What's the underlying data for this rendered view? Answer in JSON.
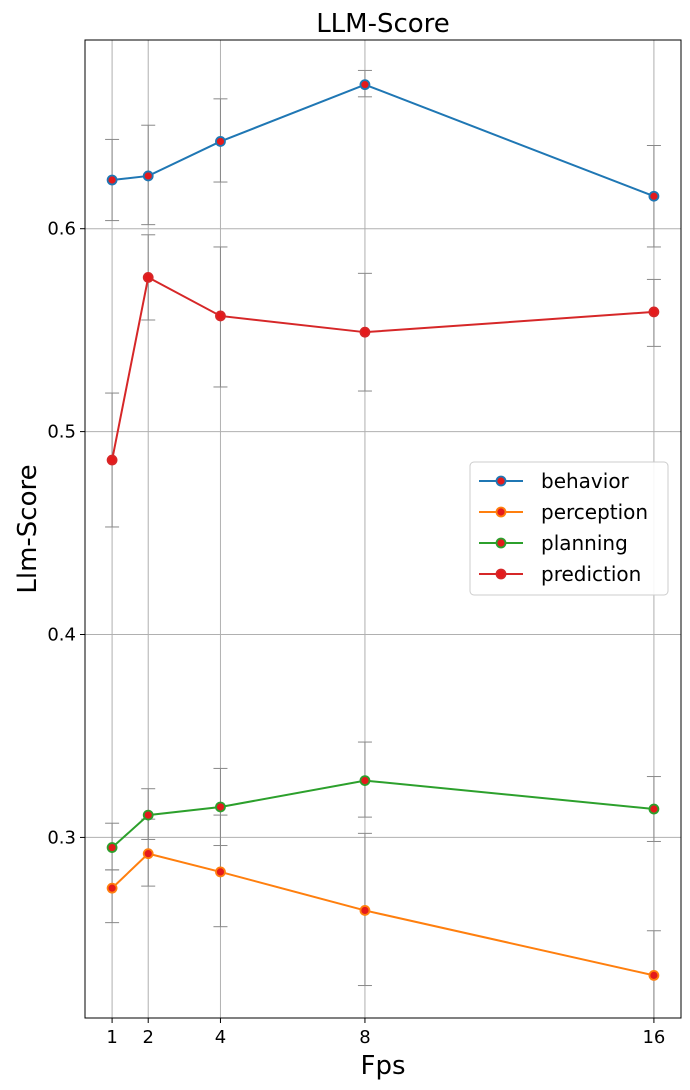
{
  "chart_data": {
    "type": "line",
    "title": "LLM-Score",
    "xlabel": "Fps",
    "ylabel": "Llm-Score",
    "x": [
      1,
      2,
      4,
      8,
      16
    ],
    "x_ticks": [
      "1",
      "2",
      "4",
      "8",
      "16"
    ],
    "y_ticks": [
      "0.3",
      "0.4",
      "0.5",
      "0.6"
    ],
    "xlim": [
      0.25,
      16.75
    ],
    "ylim": [
      0.211,
      0.693
    ],
    "grid": true,
    "legend_position": "center-right",
    "marker_face_color": "#e41a1c",
    "series": [
      {
        "name": "behavior",
        "color": "#1f77b4",
        "values": [
          0.624,
          0.626,
          0.643,
          0.671,
          0.616
        ],
        "error_low": [
          0.604,
          0.602,
          0.623,
          0.665,
          0.591
        ],
        "error_high": [
          0.644,
          0.651,
          0.664,
          0.678,
          0.641
        ]
      },
      {
        "name": "perception",
        "color": "#ff7f0e",
        "values": [
          0.275,
          0.292,
          0.283,
          0.264,
          0.232
        ],
        "error_low": [
          0.258,
          0.276,
          0.256,
          0.227,
          0.211
        ],
        "error_high": [
          0.284,
          0.309,
          0.311,
          0.302,
          0.254
        ]
      },
      {
        "name": "planning",
        "color": "#2ca02c",
        "values": [
          0.295,
          0.311,
          0.315,
          0.328,
          0.314
        ],
        "error_low": [
          0.284,
          0.299,
          0.296,
          0.31,
          0.298
        ],
        "error_high": [
          0.307,
          0.324,
          0.334,
          0.347,
          0.33
        ]
      },
      {
        "name": "prediction",
        "color": "#d62728",
        "values": [
          0.486,
          0.576,
          0.557,
          0.549,
          0.559
        ],
        "error_low": [
          0.453,
          0.555,
          0.522,
          0.52,
          0.542
        ],
        "error_high": [
          0.519,
          0.597,
          0.591,
          0.578,
          0.575
        ]
      }
    ]
  }
}
